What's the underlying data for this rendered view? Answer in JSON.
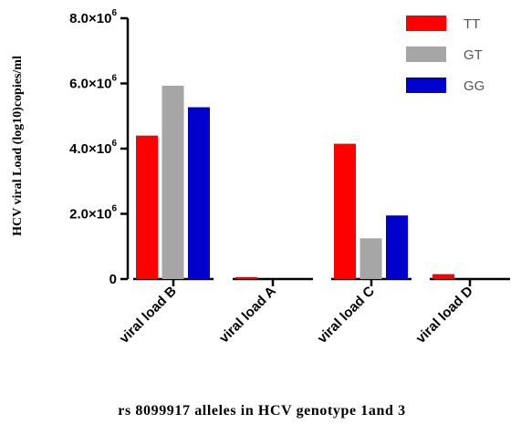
{
  "chart_data": {
    "type": "bar",
    "categories": [
      "viral load B",
      "viral load A",
      "viral load C",
      "viral load D"
    ],
    "series": [
      {
        "name": "TT",
        "color": "#ff0000",
        "values": [
          4400000,
          60000,
          4150000,
          150000
        ]
      },
      {
        "name": "GT",
        "color": "#a6a6a6",
        "values": [
          5930000,
          0,
          1250000,
          0
        ]
      },
      {
        "name": "GG",
        "color": "#0000cc",
        "values": [
          5270000,
          0,
          1950000,
          0
        ]
      }
    ],
    "ylim": [
      0,
      8000000
    ],
    "yticks": [
      {
        "value": 0,
        "mantissa": "0",
        "exponent": ""
      },
      {
        "value": 2000000,
        "mantissa": "2.0×10",
        "exponent": "6"
      },
      {
        "value": 4000000,
        "mantissa": "4.0×10",
        "exponent": "6"
      },
      {
        "value": 6000000,
        "mantissa": "6.0×10",
        "exponent": "6"
      },
      {
        "value": 8000000,
        "mantissa": "8.0×10",
        "exponent": "6"
      }
    ],
    "ylabel": "HCV viral Load (log10)copies/ml",
    "xlabel": "rs 8099917 alleles in HCV genotype 1and 3",
    "legend_position": "top-right",
    "grid": false
  }
}
